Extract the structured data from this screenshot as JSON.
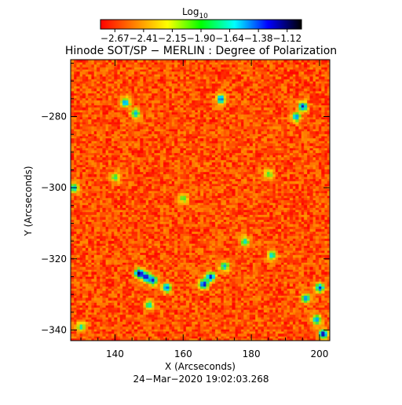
{
  "colorbar": {
    "label": "Log",
    "label_subscript": "10",
    "ticks": [
      "−2.67",
      "−2.41",
      "−2.15",
      "−1.90",
      "−1.64",
      "−1.38",
      "−1.12"
    ],
    "range": [
      -2.67,
      -1.12
    ],
    "colors": [
      "#ff0000",
      "#ff7f00",
      "#ffff00",
      "#00ff00",
      "#00ffff",
      "#0000ff",
      "#000000"
    ]
  },
  "chart_data": {
    "type": "heatmap",
    "title": "Hinode SOT/SP − MERLIN : Degree of Polarization",
    "xlabel": "X (Arcseconds)",
    "ylabel": "Y (Arcseconds)",
    "xlim": [
      127,
      203
    ],
    "ylim": [
      -343,
      -264
    ],
    "xticks": [
      140,
      160,
      180,
      200
    ],
    "yticks": [
      -340,
      -320,
      -300,
      -280
    ],
    "xtick_labels": [
      "140",
      "160",
      "180",
      "200"
    ],
    "ytick_labels": [
      "−340",
      "−320",
      "−300",
      "−280"
    ],
    "colorscale": "log10 degree of polarization, red (low) to black (high)",
    "value_range": [
      -2.67,
      -1.12
    ],
    "background_level": -2.5,
    "features": [
      {
        "x": 147,
        "y": -324,
        "level": -1.15
      },
      {
        "x": 149,
        "y": -325,
        "level": -1.25
      },
      {
        "x": 151,
        "y": -326,
        "level": -1.35
      },
      {
        "x": 155,
        "y": -328,
        "level": -1.45
      },
      {
        "x": 166,
        "y": -327,
        "level": -1.25
      },
      {
        "x": 168,
        "y": -325,
        "level": -1.3
      },
      {
        "x": 172,
        "y": -322,
        "level": -1.55
      },
      {
        "x": 195,
        "y": -277,
        "level": -1.3
      },
      {
        "x": 193,
        "y": -280,
        "level": -1.5
      },
      {
        "x": 171,
        "y": -275,
        "level": -1.45
      },
      {
        "x": 143,
        "y": -276,
        "level": -1.5
      },
      {
        "x": 146,
        "y": -279,
        "level": -1.6
      },
      {
        "x": 200,
        "y": -328,
        "level": -1.35
      },
      {
        "x": 196,
        "y": -331,
        "level": -1.5
      },
      {
        "x": 201,
        "y": -341,
        "level": -1.25
      },
      {
        "x": 199,
        "y": -337,
        "level": -1.5
      },
      {
        "x": 128,
        "y": -300,
        "level": -1.6
      },
      {
        "x": 130,
        "y": -339,
        "level": -1.7
      },
      {
        "x": 186,
        "y": -319,
        "level": -1.65
      },
      {
        "x": 178,
        "y": -315,
        "level": -1.7
      },
      {
        "x": 150,
        "y": -333,
        "level": -1.7
      },
      {
        "x": 140,
        "y": -297,
        "level": -1.8
      },
      {
        "x": 160,
        "y": -303,
        "level": -1.85
      },
      {
        "x": 185,
        "y": -296,
        "level": -1.85
      }
    ]
  },
  "timestamp": "24−Mar−2020 19:02:03.268"
}
